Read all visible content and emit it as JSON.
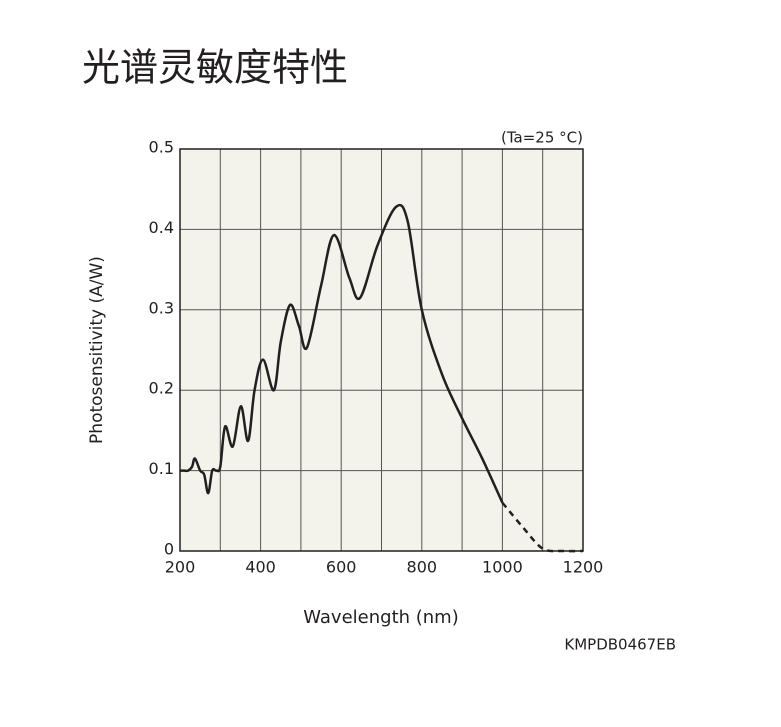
{
  "chart_data": {
    "type": "line",
    "title": "光谱灵敏度特性",
    "condition": "(Ta=25 °C)",
    "code": "KMPDB0467EB",
    "x_label": "Wavelength (nm)",
    "y_label": "Photosensitivity (A/W)",
    "x": [
      200,
      210,
      220,
      230,
      237,
      250,
      260,
      270,
      280,
      290,
      300,
      312,
      331,
      351,
      369,
      385,
      406,
      433,
      450,
      473,
      495,
      515,
      550,
      582,
      620,
      647,
      690,
      736,
      765,
      800,
      850,
      900,
      950,
      1000,
      1050,
      1100,
      1150,
      1200
    ],
    "series": [
      {
        "color": "#231f20",
        "dashed": false,
        "values": [
          0.1,
          0.1,
          0.1,
          0.105,
          0.115,
          0.1,
          0.095,
          0.072,
          0.1,
          0.1,
          0.105,
          0.155,
          0.13,
          0.18,
          0.137,
          0.2,
          0.238,
          0.2,
          0.26,
          0.306,
          0.28,
          0.253,
          0.33,
          0.393,
          0.34,
          0.315,
          0.38,
          0.428,
          0.41,
          0.3,
          0.22,
          0.165,
          0.115,
          0.06,
          null,
          null,
          null,
          null
        ]
      },
      {
        "color": "#231f20",
        "dashed": true,
        "values": [
          null,
          null,
          null,
          null,
          null,
          null,
          null,
          null,
          null,
          null,
          null,
          null,
          null,
          null,
          null,
          null,
          null,
          null,
          null,
          null,
          null,
          null,
          null,
          null,
          null,
          null,
          null,
          null,
          null,
          null,
          null,
          null,
          null,
          0.06,
          0.03,
          0.003,
          0,
          0
        ]
      }
    ],
    "xlim": [
      200,
      1200
    ],
    "xticks": [
      200,
      400,
      600,
      800,
      1000,
      1200
    ],
    "x_minor_grid": [
      300,
      500,
      700,
      900,
      1100
    ],
    "ylim": [
      0,
      0.5
    ],
    "yticks": [
      0,
      0.1,
      0.2,
      0.3,
      0.4,
      0.5
    ],
    "grid": true,
    "background": "#f3f2eb"
  }
}
